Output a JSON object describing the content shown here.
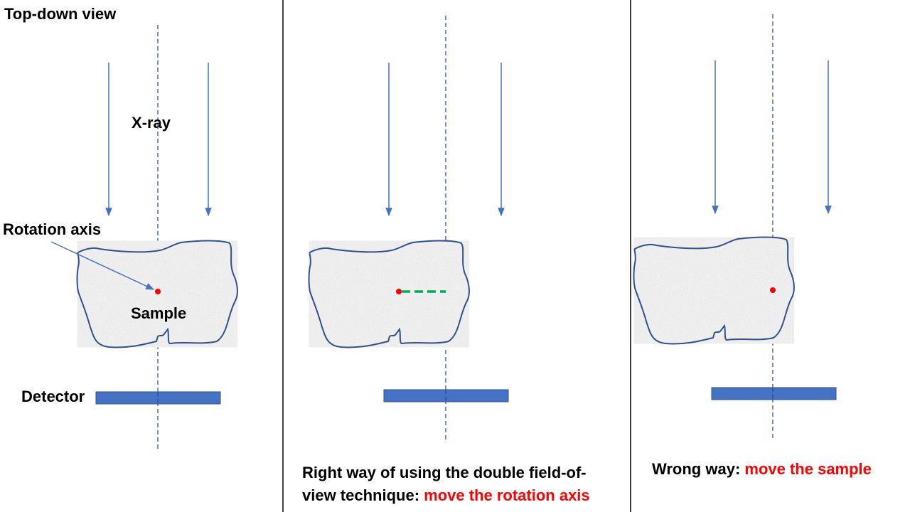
{
  "labels": {
    "view_title": "Top-down view",
    "xray": "X-ray",
    "rotation_axis": "Rotation axis",
    "sample": "Sample",
    "detector": "Detector"
  },
  "captions": {
    "right": {
      "line1": "Right way of using the double field-of-",
      "line2_prefix": "view technique: ",
      "line2_highlight": "move the rotation axis"
    },
    "wrong": {
      "prefix": "Wrong way: ",
      "highlight": "move the sample"
    }
  },
  "colors": {
    "beam": "#4472c4",
    "outline": "#2f528f",
    "detector": "#4472c4",
    "sample_fill": "#e8e8e8",
    "axis_point": "#ff0000",
    "offset_line": "#00b050",
    "highlight": "#ff0000",
    "divider": "#000000"
  },
  "icons": [
    "xray-arrow-icon",
    "rotation-axis-dot-icon",
    "sample-shape-icon",
    "detector-bar-icon"
  ]
}
